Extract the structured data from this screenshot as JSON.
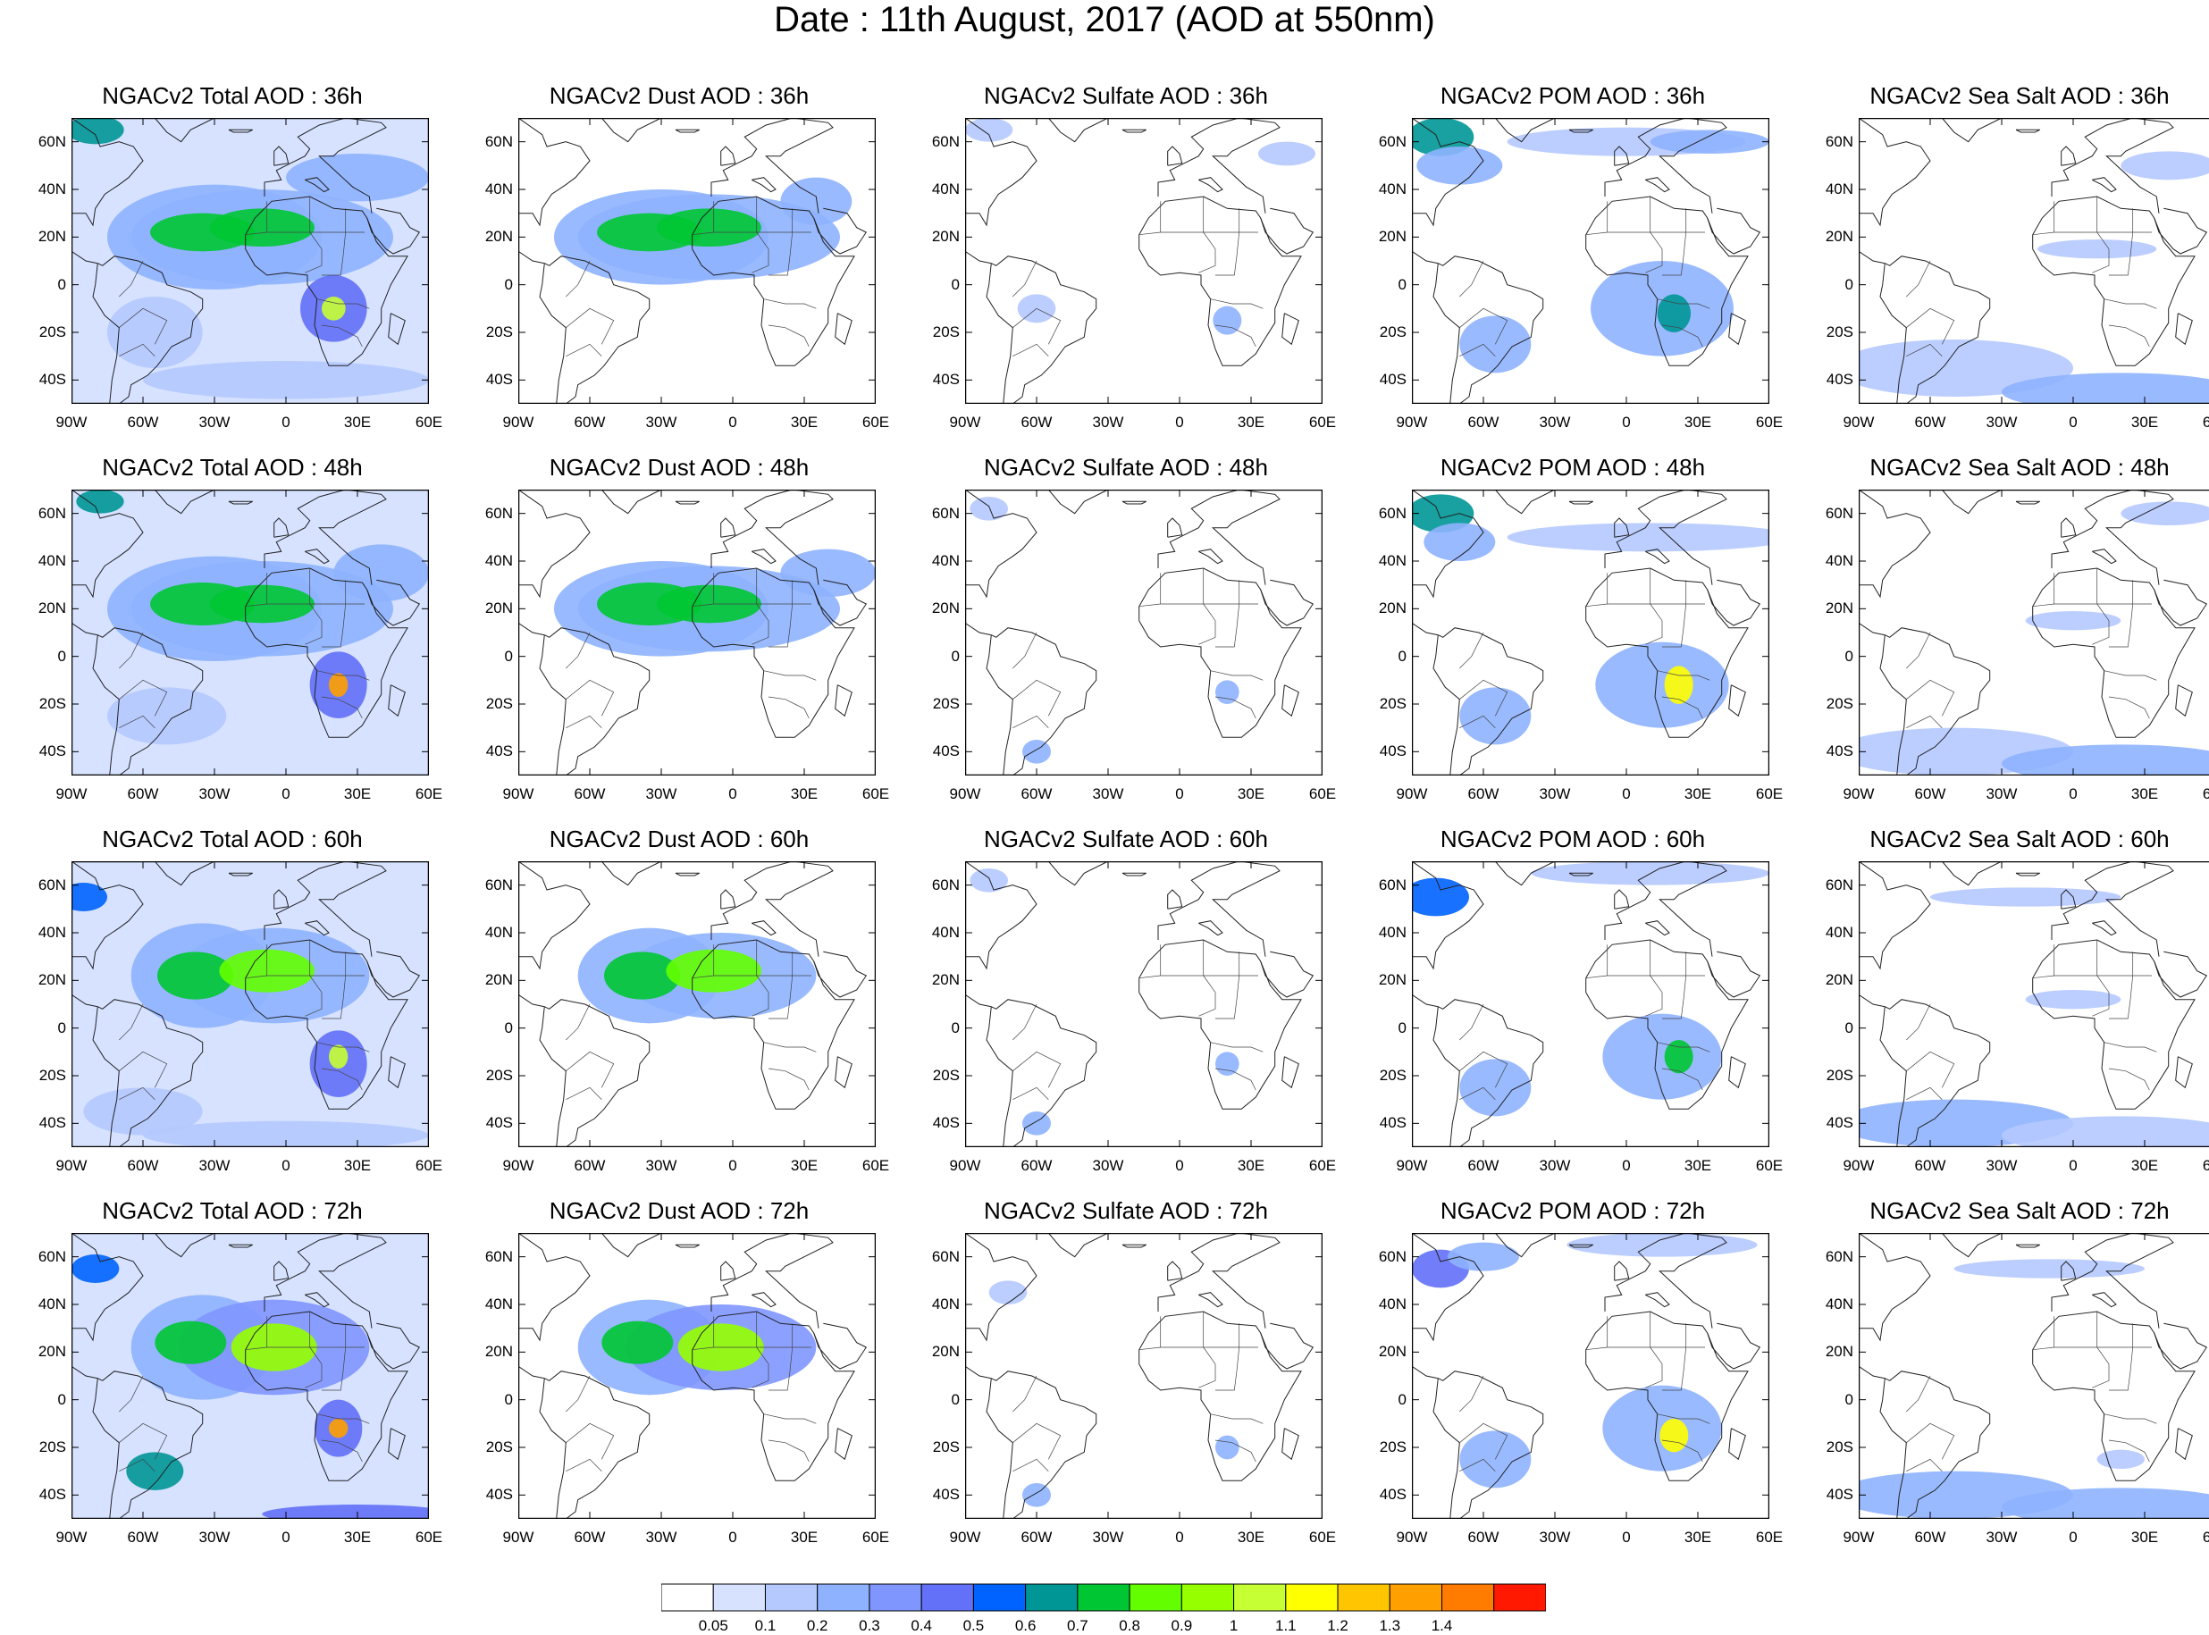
{
  "title": "Date : 11th August, 2017 (AOD at 550nm)",
  "lat_labels": [
    "60N",
    "40N",
    "20N",
    "0",
    "20S",
    "40S"
  ],
  "lon_labels": [
    "90W",
    "60W",
    "30W",
    "0",
    "30E",
    "60E"
  ],
  "panels": [
    [
      {
        "title": "NGACv2 Total AOD : 36h",
        "species": "total"
      },
      {
        "title": "NGACv2 Dust AOD : 36h",
        "species": "dust"
      },
      {
        "title": "NGACv2 Sulfate AOD : 36h",
        "species": "sulfate"
      },
      {
        "title": "NGACv2 POM AOD : 36h",
        "species": "pom"
      },
      {
        "title": "NGACv2 Sea Salt AOD : 36h",
        "species": "seasalt"
      }
    ],
    [
      {
        "title": "NGACv2 Total AOD : 48h",
        "species": "total"
      },
      {
        "title": "NGACv2 Dust AOD : 48h",
        "species": "dust"
      },
      {
        "title": "NGACv2 Sulfate AOD : 48h",
        "species": "sulfate"
      },
      {
        "title": "NGACv2 POM AOD : 48h",
        "species": "pom"
      },
      {
        "title": "NGACv2 Sea Salt AOD : 48h",
        "species": "seasalt"
      }
    ],
    [
      {
        "title": "NGACv2 Total AOD : 60h",
        "species": "total"
      },
      {
        "title": "NGACv2 Dust AOD : 60h",
        "species": "dust"
      },
      {
        "title": "NGACv2 Sulfate AOD : 60h",
        "species": "sulfate"
      },
      {
        "title": "NGACv2 POM AOD : 60h",
        "species": "pom"
      },
      {
        "title": "NGACv2 Sea Salt AOD : 60h",
        "species": "seasalt"
      }
    ],
    [
      {
        "title": "NGACv2 Total AOD : 72h",
        "species": "total"
      },
      {
        "title": "NGACv2 Dust AOD : 72h",
        "species": "dust"
      },
      {
        "title": "NGACv2 Sulfate AOD : 72h",
        "species": "sulfate"
      },
      {
        "title": "NGACv2 POM AOD : 72h",
        "species": "pom"
      },
      {
        "title": "NGACv2 Sea Salt  AOD : 72h",
        "species": "seasalt"
      }
    ]
  ],
  "colorbar": {
    "labels": [
      "0.05",
      "0.1",
      "0.2",
      "0.3",
      "0.4",
      "0.5",
      "0.6",
      "0.7",
      "0.8",
      "0.9",
      "1",
      "1.1",
      "1.2",
      "1.3",
      "1.4"
    ],
    "colors": [
      "#ffffff",
      "#d6e2ff",
      "#b5c9ff",
      "#8eb2ff",
      "#7f96ff",
      "#6370f8",
      "#0063ff",
      "#009696",
      "#00c633",
      "#63ff00",
      "#96ff00",
      "#c6ff33",
      "#ffff00",
      "#ffc600",
      "#ffa000",
      "#ff7c00",
      "#ff1900"
    ]
  }
}
